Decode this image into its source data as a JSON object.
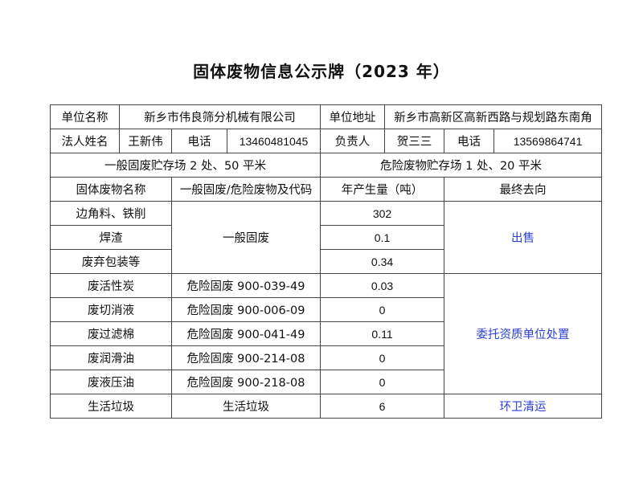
{
  "title": "固体废物信息公示牌（2023 年）",
  "info": {
    "unit_name_label": "单位名称",
    "unit_name": "新乡市伟良筛分机械有限公司",
    "unit_address_label": "单位地址",
    "unit_address": "新乡市高新区高新西路与规划路东南角",
    "legal_person_label": "法人姓名",
    "legal_person": "王新伟",
    "phone_label_1": "电话",
    "phone_1": "13460481045",
    "responsible_label": "负责人",
    "responsible": "贺三三",
    "phone_label_2": "电话",
    "phone_2": "13569864741",
    "general_storage": "一般固废贮存场 2 处、50 平米",
    "hazardous_storage": "危险废物贮存场 1 处、20 平米"
  },
  "headers": [
    "固体废物名称",
    "一般固废/危险废物及代码",
    "年产生量（吨）",
    "最终去向"
  ],
  "general": {
    "category": "一般固废",
    "destination": "出售",
    "rows": [
      {
        "name": "边角料、铁削",
        "amount": "302"
      },
      {
        "name": "焊渣",
        "amount": "0.1"
      },
      {
        "name": "废弃包装等",
        "amount": "0.34"
      }
    ]
  },
  "hazardous": {
    "destination": "委托资质单位处置",
    "rows": [
      {
        "name": "废活性炭",
        "code": "危险固废  900-039-49",
        "amount": "0.03"
      },
      {
        "name": "废切消液",
        "code": "危险固废  900-006-09",
        "amount": "0"
      },
      {
        "name": "废过滤棉",
        "code": "危险固废  900-041-49",
        "amount": "0.11"
      },
      {
        "name": "废润滑油",
        "code": "危险固废 900-214-08",
        "amount": "0"
      },
      {
        "name": "废液压油",
        "code": "危险固废  900-218-08",
        "amount": "0"
      }
    ]
  },
  "domestic": {
    "name": "生活垃圾",
    "category": "生活垃圾",
    "amount": "6",
    "destination": "环卫清运"
  },
  "colors": {
    "destination_text": "#2b3fd6",
    "border": "#444444"
  }
}
